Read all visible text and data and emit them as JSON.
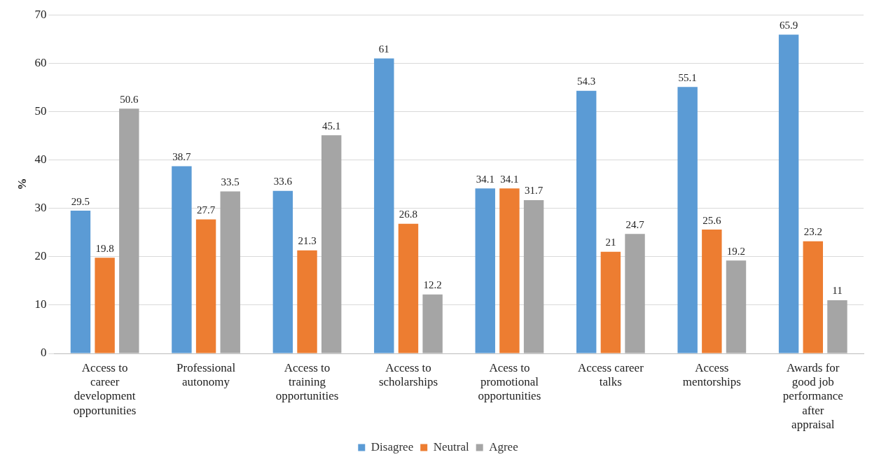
{
  "chart_data": {
    "type": "bar",
    "ylabel": "%",
    "categories": [
      "Access to career development opportunities",
      "Professional autonomy",
      "Access to training opportunities",
      "Access to scholarships",
      "Acess to promotional opportunities",
      "Access career talks",
      "Access mentorships",
      "Awards for good job performance after appraisal"
    ],
    "series": [
      {
        "name": "Disagree",
        "color": "#5b9bd5",
        "values": [
          29.5,
          38.7,
          33.6,
          61,
          34.1,
          54.3,
          55.1,
          65.9
        ]
      },
      {
        "name": "Neutral",
        "color": "#ed7d31",
        "values": [
          19.8,
          27.7,
          21.3,
          26.8,
          34.1,
          21,
          25.6,
          23.2
        ]
      },
      {
        "name": "Agree",
        "color": "#a5a5a5",
        "values": [
          50.6,
          33.5,
          45.1,
          12.2,
          31.7,
          24.7,
          19.2,
          11
        ]
      }
    ],
    "ylim": [
      0,
      70
    ],
    "yticks": [
      0,
      10,
      20,
      30,
      40,
      50,
      60,
      70
    ],
    "grid": "y",
    "legend": "bottom",
    "data_labels": true
  }
}
